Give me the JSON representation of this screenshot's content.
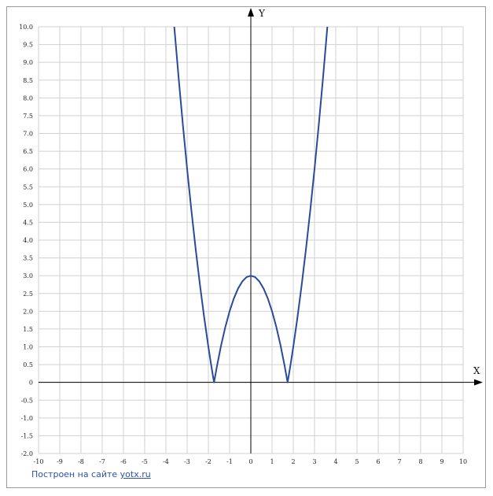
{
  "chart_data": {
    "type": "line",
    "title": "",
    "xlabel": "X",
    "ylabel": "Y",
    "xlim": [
      -10,
      10
    ],
    "ylim": [
      -2,
      10
    ],
    "grid": true,
    "x_ticks": [
      "-10",
      "-9",
      "-8",
      "-7",
      "-6",
      "-5",
      "-4",
      "-3",
      "-2",
      "-1",
      "0",
      "1",
      "2",
      "3",
      "4",
      "5",
      "6",
      "7",
      "8",
      "9",
      "10"
    ],
    "y_ticks": [
      "10.0",
      "9.5",
      "9.0",
      "8.5",
      "8.0",
      "7.5",
      "7.0",
      "6.5",
      "6.0",
      "5.5",
      "5.0",
      "4.5",
      "4.0",
      "3.5",
      "3.0",
      "2.5",
      "2.0",
      "1.5",
      "1.0",
      "0.5",
      "0",
      "-0.5",
      "-1.0",
      "-1.5",
      "-2.0"
    ],
    "series": [
      {
        "color": "#2a4a9a",
        "x": [
          -3.62,
          -3.4,
          -3.2,
          -3.0,
          -2.8,
          -2.6,
          -2.4,
          -2.2,
          -2.0,
          -1.9,
          -1.8,
          -1.732,
          -1.6,
          -1.4,
          -1.2,
          -1.0,
          -0.8,
          -0.6,
          -0.4,
          -0.2,
          0,
          0.2,
          0.4,
          0.6,
          0.8,
          1.0,
          1.2,
          1.4,
          1.6,
          1.732,
          1.8,
          1.9,
          2.0,
          2.2,
          2.4,
          2.6,
          2.8,
          3.0,
          3.2,
          3.4,
          3.62
        ],
        "y": [
          10.1,
          8.56,
          7.24,
          6.0,
          4.84,
          3.76,
          2.76,
          1.84,
          1.0,
          0.61,
          0.24,
          0,
          0.44,
          1.04,
          1.56,
          2.0,
          2.36,
          2.64,
          2.84,
          2.96,
          3.0,
          2.96,
          2.84,
          2.64,
          2.36,
          2.0,
          1.56,
          1.04,
          0.44,
          0,
          0.24,
          0.61,
          1.0,
          1.84,
          2.76,
          3.76,
          4.84,
          6.0,
          7.24,
          8.56,
          10.1
        ]
      }
    ]
  },
  "colors": {
    "grid": "#d0d0d0",
    "axis": "#000000",
    "curve": "#2a4a9a",
    "border": "#9a9a9a",
    "link": "#2e52a8"
  },
  "credit": {
    "prefix": "Построен на сайте ",
    "link": "yotx.ru"
  }
}
